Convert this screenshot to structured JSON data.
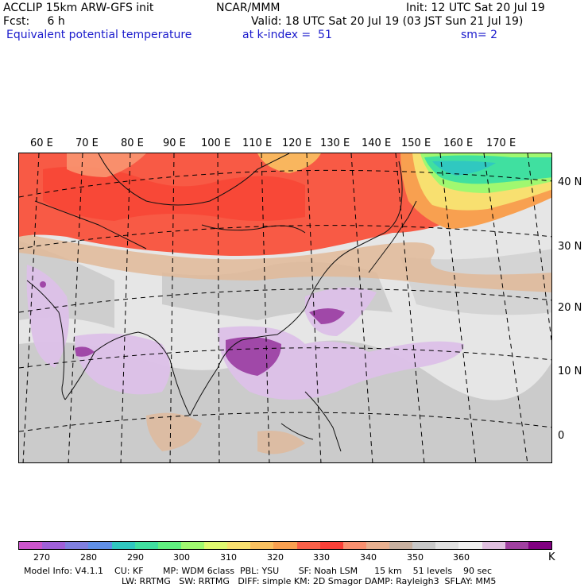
{
  "header": {
    "line1_left": "ACCLIP 15km ARW-GFS init",
    "line1_center": "NCAR/MMM",
    "line1_right": "Init: 12 UTC Sat 20 Jul 19",
    "line2_left": "Fcst:     6 h",
    "line2_right": "Valid: 18 UTC Sat 20 Jul 19 (03 JST Sun 21 Jul 19)",
    "line3_left": "Equivalent potential temperature",
    "line3_center": "at k-index =  51",
    "line3_right": "sm= 2"
  },
  "map": {
    "lon_labels": [
      "60 E",
      "70 E",
      "80 E",
      "90 E",
      "100 E",
      "110 E",
      "120 E",
      "130 E",
      "140 E",
      "150 E",
      "160 E",
      "170 E"
    ],
    "lat_labels": [
      "40 N",
      "30 N",
      "20 N",
      "10 N",
      "0"
    ]
  },
  "colorbar": {
    "colors": [
      "#cc55cc",
      "#a060d8",
      "#8080e0",
      "#6090e8",
      "#30c8c0",
      "#40e0a0",
      "#60f080",
      "#a0f870",
      "#e0f870",
      "#f8e070",
      "#f8c060",
      "#f8a050",
      "#f86048",
      "#f84038",
      "#f89070",
      "#e8b090",
      "#c8b0a0",
      "#c8c8c8",
      "#e0e0e0",
      "#f0f0f0",
      "#e0c0e0",
      "#a040a0",
      "#800080"
    ],
    "tick_labels": [
      "270",
      "280",
      "290",
      "300",
      "310",
      "320",
      "330",
      "340",
      "350",
      "360"
    ],
    "unit": "K"
  },
  "footer": {
    "line1": "Model Info: V4.1.1    CU: KF       MP: WDM 6class  PBL: YSU       SF: Noah LSM      15 km    51 levels    90 sec",
    "line2": "LW: RRTMG   SW: RRTMG   DIFF: simple KM: 2D Smagor DAMP: Rayleigh3  SFLAY: MM5"
  }
}
